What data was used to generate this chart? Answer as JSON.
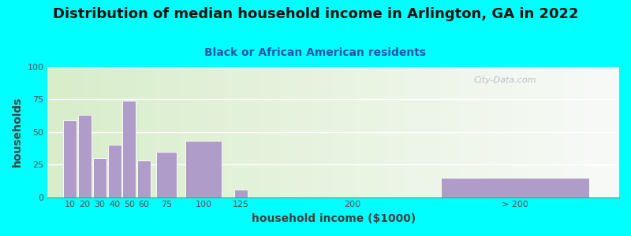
{
  "title": "Distribution of median household income in Arlington, GA in 2022",
  "subtitle": "Black or African American residents",
  "xlabel": "household income ($1000)",
  "ylabel": "households",
  "background_outer": "#00FFFF",
  "bar_color": "#b09cc8",
  "bar_edge_color": "#ffffff",
  "ylim": [
    0,
    100
  ],
  "yticks": [
    0,
    25,
    50,
    75,
    100
  ],
  "tick_labels": [
    "10",
    "20",
    "30",
    "40",
    "50",
    "60",
    "75",
    "100",
    "125",
    "200",
    "> 200"
  ],
  "x_positions": [
    10,
    20,
    30,
    40,
    50,
    60,
    75,
    100,
    125,
    200,
    310
  ],
  "bar_widths": [
    9,
    9,
    9,
    9,
    9,
    9,
    14,
    24,
    9,
    9,
    100
  ],
  "values": [
    59,
    63,
    30,
    40,
    74,
    28,
    35,
    43,
    6,
    0,
    15
  ],
  "title_fontsize": 13,
  "subtitle_fontsize": 10,
  "axis_label_fontsize": 10,
  "tick_fontsize": 8,
  "title_color": "#111111",
  "subtitle_color": "#2255aa",
  "watermark_text": "City-Data.com",
  "watermark_color": "#b0b8c0",
  "xlim": [
    -5,
    380
  ]
}
